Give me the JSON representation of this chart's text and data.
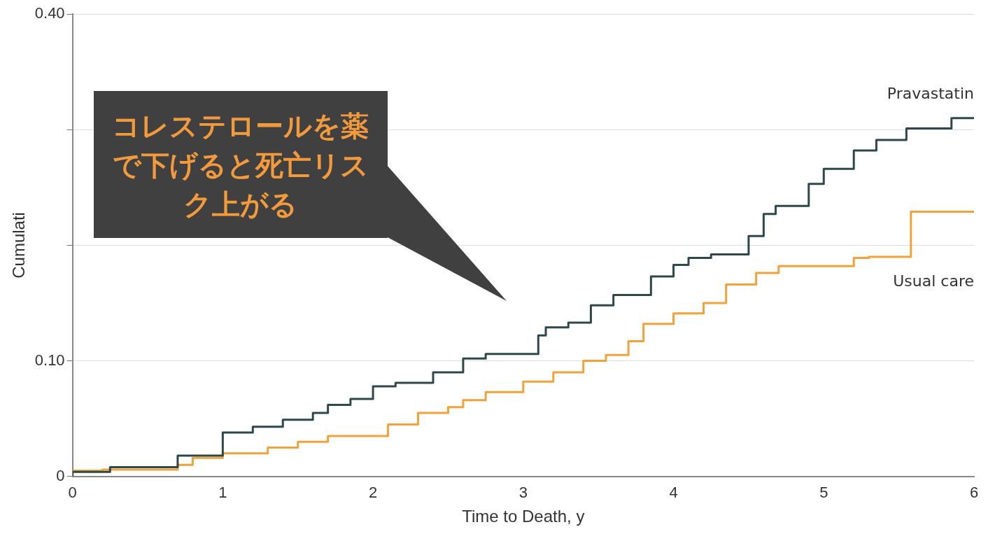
{
  "chart_data": {
    "type": "step",
    "xlabel": "Time to Death, y",
    "ylabel": "Cumulati",
    "xlim": [
      0,
      6
    ],
    "xticks": [
      0,
      1,
      2,
      3,
      4,
      5,
      6
    ],
    "ylim": [
      0,
      0.4
    ],
    "yticks": [
      0,
      {
        "value": 0.1,
        "label": "0.10"
      },
      {
        "value": 0.2,
        "label": null
      },
      {
        "value": 0.3,
        "label": null
      },
      {
        "value": 0.4,
        "label": "0.40"
      }
    ],
    "grid": "y",
    "legend": false,
    "marker": "none",
    "line_style": "solid",
    "annotations": [
      "コレステロールを薬で下げると死亡リスク上がる"
    ],
    "series": [
      {
        "name": "Pravastatin",
        "color": "#2c4848",
        "x": [
          0,
          0.25,
          0.7,
          1.0,
          1.2,
          1.4,
          1.6,
          1.7,
          1.85,
          2.0,
          2.15,
          2.4,
          2.6,
          2.75,
          3.1,
          3.15,
          3.3,
          3.45,
          3.6,
          3.85,
          4.0,
          4.1,
          4.25,
          4.5,
          4.6,
          4.68,
          4.9,
          5.0,
          5.2,
          5.35,
          5.55,
          5.85,
          5.97,
          6.0
        ],
        "values": [
          0,
          0.004,
          0.008,
          0.018,
          0.038,
          0.043,
          0.049,
          0.055,
          0.062,
          0.067,
          0.078,
          0.081,
          0.09,
          0.102,
          0.106,
          0.122,
          0.129,
          0.133,
          0.148,
          0.157,
          0.173,
          0.183,
          0.189,
          0.192,
          0.208,
          0.227,
          0.234,
          0.253,
          0.266,
          0.282,
          0.291,
          0.301,
          0.31,
          0.31
        ]
      },
      {
        "name": "Usual care",
        "color": "#f2a23a",
        "x": [
          0,
          0.2,
          0.7,
          0.8,
          1.0,
          1.3,
          1.5,
          1.7,
          2.1,
          2.3,
          2.5,
          2.6,
          2.75,
          3.0,
          3.2,
          3.4,
          3.55,
          3.7,
          3.8,
          4.0,
          4.2,
          4.35,
          4.55,
          4.7,
          5.2,
          5.3,
          5.58,
          5.65,
          6.0
        ],
        "values": [
          0,
          0.005,
          0.006,
          0.01,
          0.016,
          0.02,
          0.025,
          0.03,
          0.035,
          0.045,
          0.055,
          0.06,
          0.066,
          0.073,
          0.082,
          0.09,
          0.1,
          0.105,
          0.117,
          0.132,
          0.141,
          0.15,
          0.166,
          0.176,
          0.182,
          0.189,
          0.19,
          0.229,
          0.229
        ]
      }
    ]
  }
}
